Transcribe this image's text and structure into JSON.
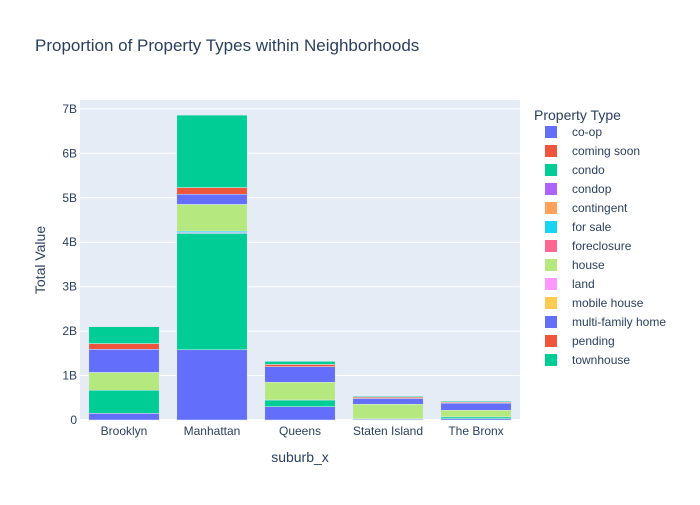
{
  "chart_data": {
    "type": "bar",
    "title": "Proportion of Property Types within Neighborhoods",
    "xlabel": "suburb_x",
    "ylabel": "Total Value",
    "ylim": [
      0,
      7200000000
    ],
    "yticks": [
      0,
      1000000000,
      2000000000,
      3000000000,
      4000000000,
      5000000000,
      6000000000,
      7000000000
    ],
    "ytick_labels": [
      "0",
      "1B",
      "2B",
      "3B",
      "4B",
      "5B",
      "6B",
      "7B"
    ],
    "grid": true,
    "barmode": "stack",
    "legend_title": "Property Type",
    "legend_position": "right",
    "categories": [
      "Brooklyn",
      "Manhattan",
      "Queens",
      "Staten Island",
      "The Bronx"
    ],
    "series": [
      {
        "name": "co-op",
        "color": "#636efa",
        "values": [
          150000000,
          1580000000,
          300000000,
          20000000,
          30000000
        ]
      },
      {
        "name": "coming soon",
        "color": "#EF553B",
        "values": [
          0,
          0,
          0,
          0,
          0
        ]
      },
      {
        "name": "condo",
        "color": "#00cc96",
        "values": [
          520000000,
          2620000000,
          150000000,
          5000000,
          40000000
        ]
      },
      {
        "name": "condop",
        "color": "#ab63fa",
        "values": [
          0,
          20000000,
          0,
          0,
          0
        ]
      },
      {
        "name": "contingent",
        "color": "#FFA15A",
        "values": [
          0,
          0,
          0,
          0,
          0
        ]
      },
      {
        "name": "for sale",
        "color": "#19d3f3",
        "values": [
          0,
          30000000,
          0,
          0,
          0
        ]
      },
      {
        "name": "foreclosure",
        "color": "#FF6692",
        "values": [
          0,
          0,
          0,
          0,
          0
        ]
      },
      {
        "name": "house",
        "color": "#B6E880",
        "values": [
          400000000,
          600000000,
          400000000,
          330000000,
          150000000
        ]
      },
      {
        "name": "land",
        "color": "#FF97FF",
        "values": [
          0,
          0,
          0,
          0,
          0
        ]
      },
      {
        "name": "mobile house",
        "color": "#FECB52",
        "values": [
          0,
          0,
          0,
          0,
          0
        ]
      },
      {
        "name": "multi-family home",
        "color": "#636efa",
        "values": [
          520000000,
          230000000,
          350000000,
          130000000,
          160000000
        ]
      },
      {
        "name": "pending",
        "color": "#EF553B",
        "values": [
          130000000,
          150000000,
          50000000,
          30000000,
          20000000
        ]
      },
      {
        "name": "townhouse",
        "color": "#00cc96",
        "values": [
          380000000,
          1630000000,
          70000000,
          20000000,
          20000000
        ]
      }
    ]
  }
}
